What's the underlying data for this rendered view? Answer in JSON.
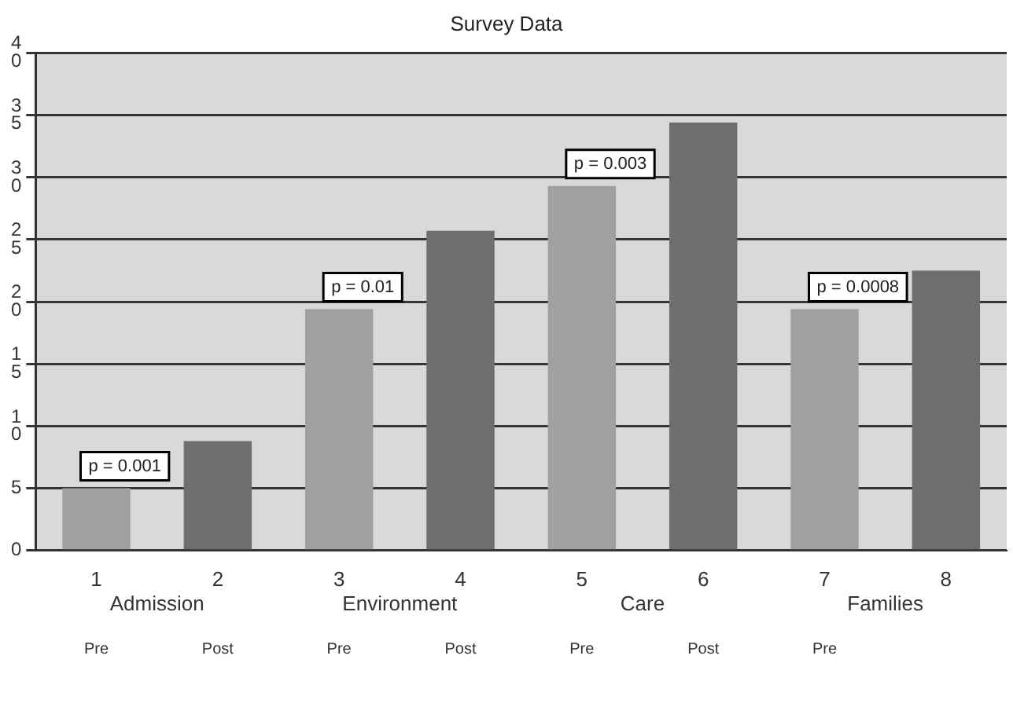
{
  "chart_data": {
    "type": "bar",
    "title": "Survey Data",
    "categories": [
      "1",
      "2",
      "3",
      "4",
      "5",
      "6",
      "7",
      "8"
    ],
    "values": [
      5,
      8.8,
      19.4,
      25.7,
      29.3,
      34.4,
      19.4,
      22.5
    ],
    "colors": [
      "#a0a0a0",
      "#6e6e6e",
      "#a0a0a0",
      "#6e6e6e",
      "#a0a0a0",
      "#6e6e6e",
      "#a0a0a0",
      "#6e6e6e"
    ],
    "ylim": [
      0,
      40
    ],
    "yticks": [
      0,
      5,
      10,
      15,
      20,
      25,
      30,
      35,
      40
    ],
    "grid": "y",
    "annotations": [
      "p = 0.001",
      "p = 0.01",
      "p = 0.003",
      "p = 0.0008",
      "Admission",
      "Environment",
      "Care",
      "Families",
      "Pre",
      "Post",
      "Pre",
      "Post",
      "Pre",
      "Post",
      "Pre"
    ]
  }
}
